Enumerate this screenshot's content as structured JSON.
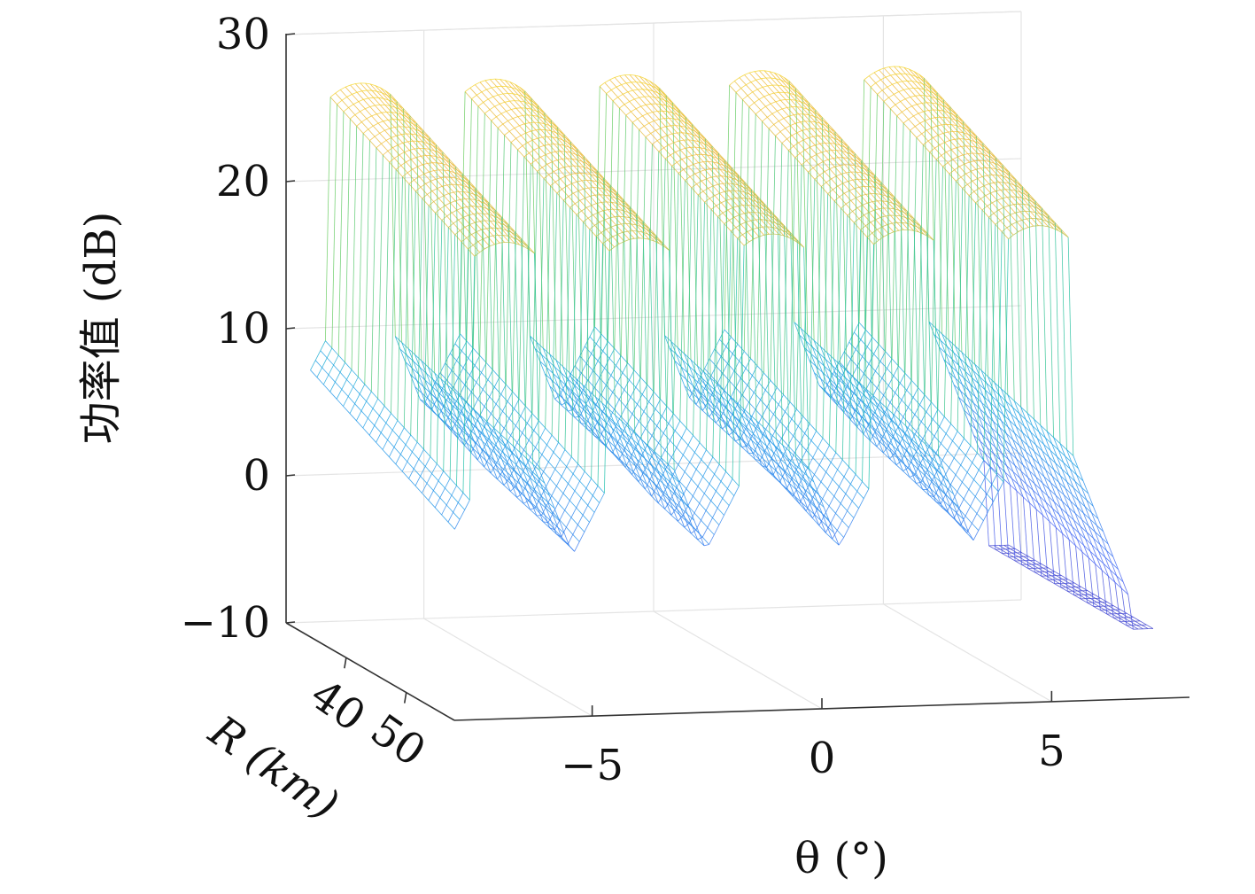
{
  "chart_data": {
    "type": "mesh3d",
    "title": "",
    "xlabel": "θ (°)",
    "ylabel": "R (km)",
    "zlabel": "功率值 (dB)",
    "xlim": [
      -8,
      8
    ],
    "ylim": [
      30,
      58
    ],
    "zlim": [
      -10,
      30
    ],
    "x_ticks": [
      -5,
      0,
      5
    ],
    "x_tick_labels": [
      "−5",
      "0",
      "5"
    ],
    "y_ticks": [
      50,
      40
    ],
    "y_tick_labels": [
      "50",
      "40"
    ],
    "z_ticks": [
      -10,
      0,
      10,
      20,
      30
    ],
    "z_tick_labels": [
      "−10",
      "0",
      "10",
      "20",
      "30"
    ],
    "grid": true,
    "colormap": "parula",
    "peaks": {
      "theta_centers": [
        -5.8,
        -2.9,
        0,
        2.9,
        5.8
      ],
      "peak_value_db": 27,
      "shoulder_value_db": 10,
      "floor_value_db": -10
    }
  }
}
